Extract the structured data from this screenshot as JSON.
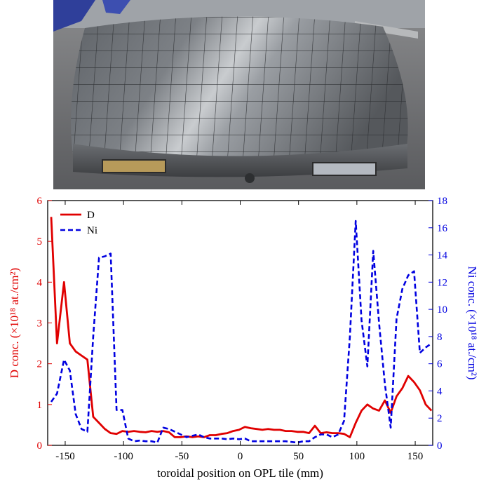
{
  "photo": {
    "description_icon": "tile-photo"
  },
  "chart_data": {
    "type": "line",
    "xlabel": "toroidal position on OPL tile (mm)",
    "ylabel": "D conc. (×10¹⁸ at./cm²)",
    "y2label": "Ni conc. (×10¹⁸ at./cm²)",
    "xlim": [
      -165,
      165
    ],
    "ylim": [
      0,
      6
    ],
    "y2lim": [
      0,
      18
    ],
    "xticks": [
      -150,
      -100,
      -50,
      0,
      50,
      100,
      150
    ],
    "yticks": [
      0,
      1,
      2,
      3,
      4,
      5,
      6
    ],
    "y2ticks": [
      0,
      2,
      4,
      6,
      8,
      10,
      12,
      14,
      16,
      18
    ],
    "legend_position": "top-left",
    "series": [
      {
        "name": "D",
        "axis": "left",
        "color": "#e00000",
        "style": "solid",
        "x": [
          -162,
          -157,
          -151,
          -146,
          -141,
          -136,
          -131,
          -126,
          -121,
          -116,
          -111,
          -106,
          -101,
          -96,
          -91,
          -86,
          -81,
          -76,
          -71,
          -66,
          -61,
          -56,
          -51,
          -46,
          -41,
          -36,
          -31,
          -26,
          -21,
          -16,
          -11,
          -6,
          -1,
          4,
          9,
          14,
          19,
          24,
          29,
          34,
          39,
          44,
          49,
          54,
          59,
          64,
          69,
          74,
          79,
          84,
          89,
          94,
          99,
          104,
          109,
          114,
          119,
          124,
          129,
          134,
          139,
          144,
          149,
          154,
          159,
          164
        ],
        "y": [
          5.6,
          2.5,
          4.0,
          2.5,
          2.3,
          2.2,
          2.1,
          0.7,
          0.55,
          0.4,
          0.3,
          0.28,
          0.35,
          0.33,
          0.35,
          0.33,
          0.32,
          0.35,
          0.33,
          0.35,
          0.32,
          0.2,
          0.2,
          0.22,
          0.2,
          0.22,
          0.2,
          0.25,
          0.25,
          0.28,
          0.3,
          0.35,
          0.38,
          0.45,
          0.42,
          0.4,
          0.38,
          0.4,
          0.38,
          0.38,
          0.35,
          0.35,
          0.33,
          0.33,
          0.3,
          0.48,
          0.3,
          0.32,
          0.3,
          0.3,
          0.28,
          0.2,
          0.55,
          0.85,
          1.0,
          0.9,
          0.85,
          1.1,
          0.8,
          1.2,
          1.4,
          1.7,
          1.55,
          1.35,
          1.0,
          0.85
        ]
      },
      {
        "name": "Ni",
        "axis": "right",
        "color": "#0000e0",
        "style": "dashed",
        "x": [
          -162,
          -157,
          -151,
          -146,
          -141,
          -136,
          -131,
          -126,
          -121,
          -116,
          -111,
          -106,
          -101,
          -96,
          -91,
          -86,
          -81,
          -76,
          -71,
          -66,
          -61,
          -56,
          -51,
          -46,
          -41,
          -36,
          -31,
          -26,
          -21,
          -16,
          -11,
          -6,
          -1,
          4,
          9,
          14,
          19,
          24,
          29,
          34,
          39,
          44,
          49,
          54,
          59,
          64,
          69,
          74,
          79,
          84,
          89,
          94,
          99,
          104,
          109,
          114,
          119,
          124,
          129,
          134,
          139,
          144,
          149,
          154,
          159,
          164
        ],
        "y": [
          3.2,
          3.8,
          6.3,
          5.5,
          2.3,
          1.2,
          1.0,
          8.0,
          13.8,
          13.9,
          14.1,
          2.6,
          2.6,
          0.5,
          0.3,
          0.35,
          0.3,
          0.3,
          0.2,
          1.3,
          1.2,
          1.0,
          0.8,
          0.6,
          0.7,
          0.8,
          0.6,
          0.5,
          0.5,
          0.5,
          0.45,
          0.5,
          0.45,
          0.5,
          0.3,
          0.3,
          0.3,
          0.3,
          0.3,
          0.3,
          0.3,
          0.25,
          0.2,
          0.3,
          0.3,
          0.6,
          0.8,
          0.8,
          0.6,
          0.8,
          1.8,
          8.0,
          16.5,
          9.2,
          5.8,
          14.3,
          9.0,
          4.5,
          1.3,
          9.3,
          11.5,
          12.5,
          12.8,
          6.8,
          7.2,
          7.5
        ]
      }
    ]
  }
}
